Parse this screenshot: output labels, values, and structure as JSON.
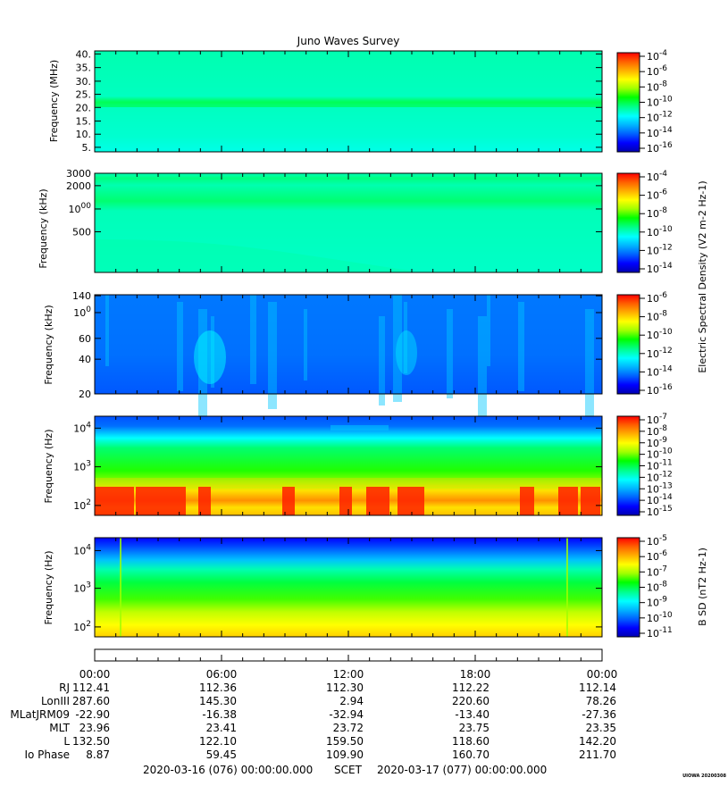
{
  "title": "Juno Waves Survey",
  "watermark": "UIOWA 20200308",
  "colors": {
    "colormap": [
      "#0000b0",
      "#0000ff",
      "#0060ff",
      "#00b4ff",
      "#00ffff",
      "#00ff90",
      "#00ff00",
      "#a0ff00",
      "#ffff00",
      "#ffb000",
      "#ff6000",
      "#ff0000"
    ]
  },
  "chart_data": [
    {
      "type": "heatmap",
      "ylabel": "Frequency (MHz)",
      "yticks": [
        "40.",
        "35.",
        "30.",
        "25.",
        "20.",
        "15.",
        "10.",
        "5."
      ],
      "ylim": [
        3.5,
        41.5
      ],
      "colorbar": {
        "ticks": [
          "10-4",
          "10-6",
          "10-8",
          "10-10",
          "10-12",
          "10-14",
          "10-16"
        ]
      },
      "features": "uniform background near 1e-12 with enhanced band near 21 MHz"
    },
    {
      "type": "heatmap",
      "ylabel": "Frequency (kHz)",
      "yticks": [
        "3000",
        "2000",
        "1000",
        "500"
      ],
      "scale": "log",
      "colorbar": {
        "ticks": [
          "10-4",
          "10-6",
          "10-8",
          "10-10",
          "10-12",
          "10-14"
        ],
        "label": "Electric Spectral Density (V2 m-2 Hz-1)"
      },
      "features": "enhanced emission near 1000-1500 kHz and 2500 kHz; faint band descending from ~350 kHz"
    },
    {
      "type": "heatmap",
      "ylabel": "Frequency (kHz)",
      "yticks": [
        "140",
        "100",
        "60",
        "40",
        "20"
      ],
      "colorbar": {
        "ticks": [
          "10-6",
          "10-8",
          "10-10",
          "10-12",
          "10-14",
          "10-16"
        ]
      },
      "features": "mostly low intensity with sporadic brighter bursts"
    },
    {
      "type": "heatmap",
      "ylabel": "Frequency (Hz)",
      "yticks": [
        "10^4",
        "10^3",
        "10^2"
      ],
      "scale": "log",
      "colorbar": {
        "ticks": [
          "10-7",
          "10-8",
          "10-9",
          "10-10",
          "10-11",
          "10-12",
          "10-13",
          "10-14",
          "10-15"
        ]
      },
      "features": "intense low-frequency emission below 300 Hz, green mid-band, blue above 3 kHz"
    },
    {
      "type": "heatmap",
      "ylabel": "Frequency (Hz)",
      "yticks": [
        "10^4",
        "10^3",
        "10^2"
      ],
      "scale": "log",
      "colorbar": {
        "ticks": [
          "10-5",
          "10-6",
          "10-7",
          "10-8",
          "10-9",
          "10-10",
          "10-11"
        ],
        "label": "B SD (nT2 Hz-1)"
      },
      "features": "smooth gradient: yellow at low frequency to blue at high frequency"
    }
  ],
  "time_labels": [
    "00:00",
    "06:00",
    "12:00",
    "18:00",
    "00:00"
  ],
  "ephemeris": [
    {
      "label": "RJ",
      "values": [
        "112.41",
        "112.36",
        "112.30",
        "112.22",
        "112.14"
      ]
    },
    {
      "label": "LonIII",
      "values": [
        "287.60",
        "145.30",
        "2.94",
        "220.60",
        "78.26"
      ]
    },
    {
      "label": "MLatJRM09",
      "values": [
        "-22.90",
        "-16.38",
        "-32.94",
        "-13.40",
        "-27.36"
      ]
    },
    {
      "label": "MLT",
      "values": [
        "23.96",
        "23.41",
        "23.72",
        "23.75",
        "23.35"
      ]
    },
    {
      "label": "L",
      "values": [
        "132.50",
        "122.10",
        "159.50",
        "118.60",
        "142.20"
      ]
    },
    {
      "label": "Io Phase",
      "values": [
        "8.87",
        "59.45",
        "109.90",
        "160.70",
        "211.70"
      ]
    }
  ],
  "footer": {
    "start": "2020-03-16 (076) 00:00:00.000",
    "mid": "SCET",
    "end": "2020-03-17 (077) 00:00:00.000"
  }
}
